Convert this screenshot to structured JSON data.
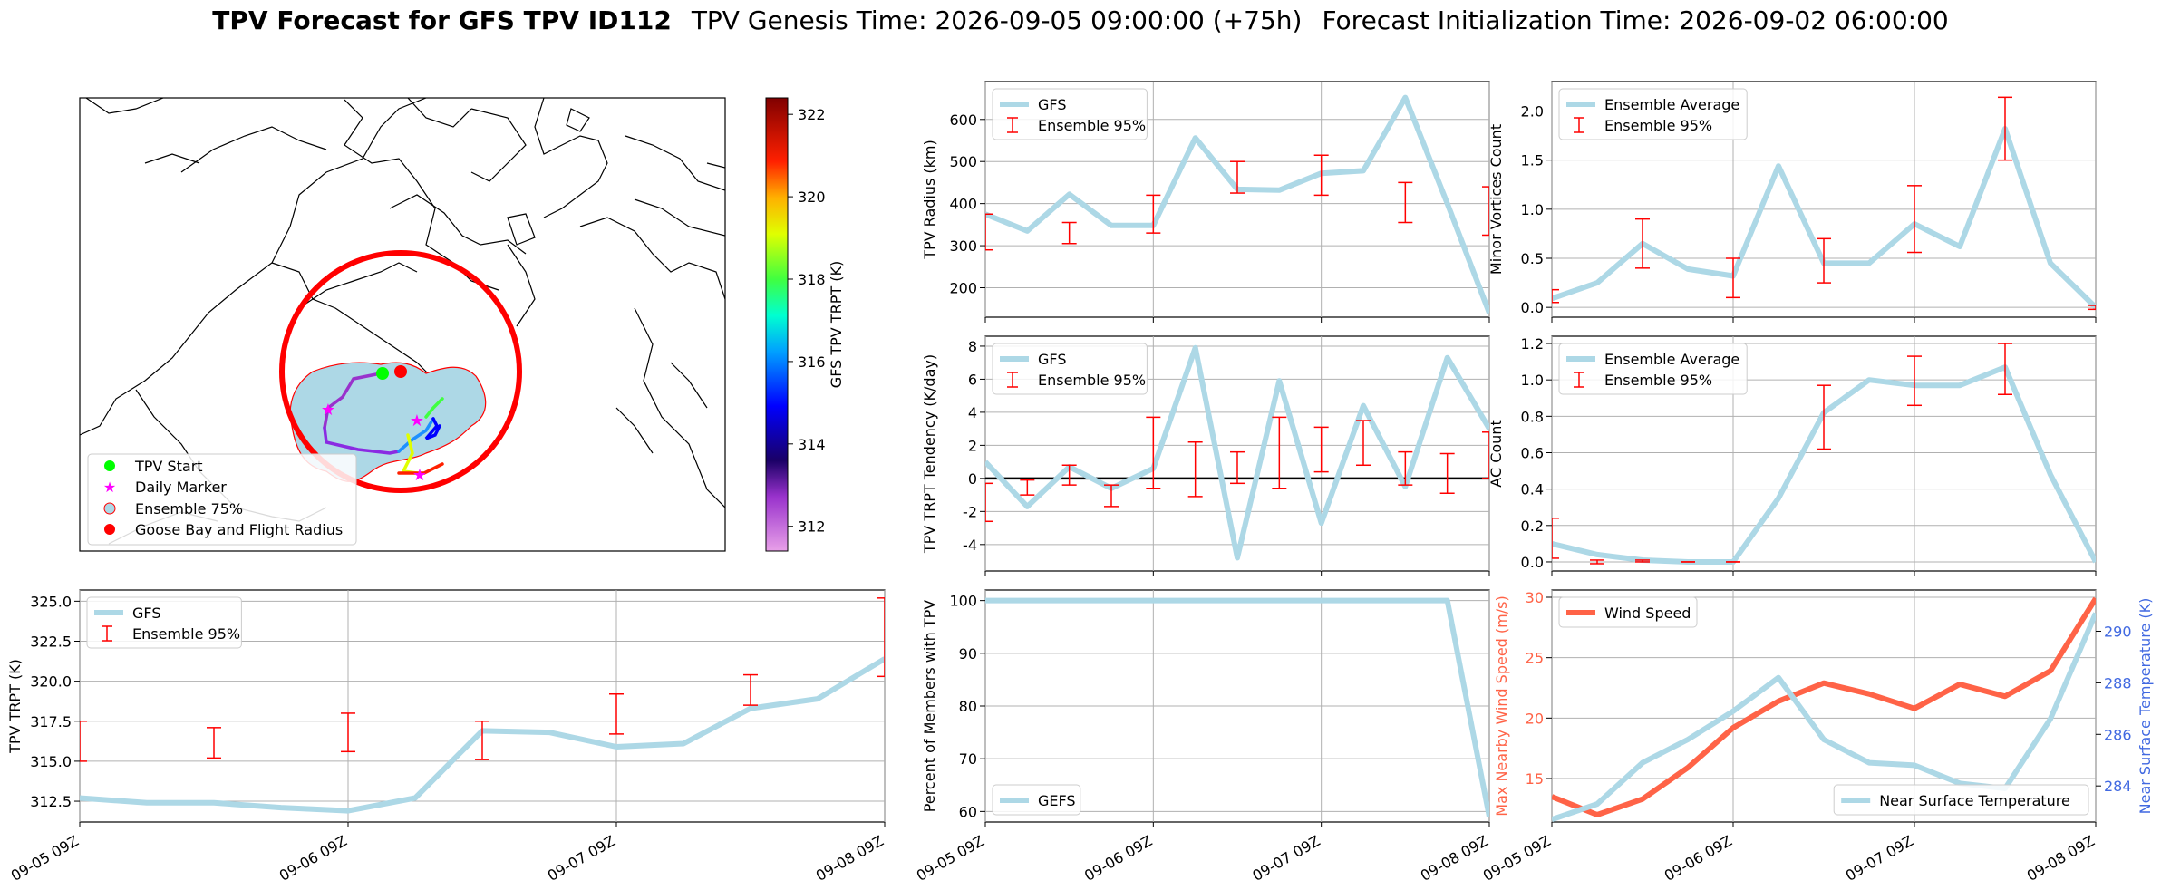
{
  "header": {
    "main_title": "TPV Forecast for GFS TPV ID112",
    "genesis_text": "TPV Genesis Time: 2026-09-05 09:00:00 (+75h)",
    "init_text": "Forecast Initialization Time: 2026-09-02 06:00:00"
  },
  "colors": {
    "line": "#add8e6",
    "error": "#ff0000",
    "wind": "#ff6347",
    "temp_axis": "#4169e1",
    "map_circle": "#ff0000",
    "ensemble_fill": "#add8e6",
    "start_marker": "#00ff00",
    "daily_marker": "#ff00ff",
    "goose_bay": "#ff0000"
  },
  "map": {
    "legend": [
      "TPV Start",
      "Daily Marker",
      "Ensemble 75%",
      "Goose Bay and Flight Radius"
    ],
    "colorbar": {
      "label": "GFS TPV TRPT (K)",
      "ticks": [
        "322",
        "320",
        "318",
        "316",
        "314",
        "312"
      ],
      "range": [
        311.4,
        322.4
      ]
    }
  },
  "chart_data": [
    {
      "id": "radius",
      "type": "line",
      "ylabel": "TPV Radius (km)",
      "ylim": [
        130,
        690
      ],
      "yticks": [
        200,
        300,
        400,
        500,
        600
      ],
      "x_ticklabels": [],
      "legend": [
        "GFS",
        "Ensemble 95%"
      ],
      "legend_pos": "top-left",
      "grid": true,
      "series": [
        {
          "name": "GFS",
          "values": [
            375,
            335,
            422,
            348,
            348,
            556,
            434,
            432,
            472,
            478,
            652,
            400,
            140
          ]
        }
      ],
      "error_bars": [
        [
          290,
          375
        ],
        null,
        [
          305,
          355
        ],
        null,
        [
          330,
          420
        ],
        null,
        [
          425,
          500
        ],
        null,
        [
          420,
          515
        ],
        null,
        [
          355,
          450
        ],
        null,
        [
          325,
          440
        ]
      ]
    },
    {
      "id": "minor_vortices",
      "type": "line",
      "ylabel": "Minor Vortices Count",
      "ylim": [
        -0.1,
        2.3
      ],
      "yticks": [
        "0.0",
        "0.5",
        "1.0",
        "1.5",
        "2.0"
      ],
      "x_ticklabels": [],
      "legend": [
        "Ensemble Average",
        "Ensemble 95%"
      ],
      "legend_pos": "top-left",
      "grid": true,
      "series": [
        {
          "name": "Ensemble Average",
          "values": [
            0.09,
            0.25,
            0.65,
            0.39,
            0.32,
            1.44,
            0.45,
            0.45,
            0.85,
            0.62,
            1.82,
            0.45,
            0.0
          ]
        }
      ],
      "error_bars": [
        [
          0.05,
          0.18
        ],
        null,
        [
          0.4,
          0.9
        ],
        null,
        [
          0.1,
          0.5
        ],
        null,
        [
          0.25,
          0.7
        ],
        null,
        [
          0.56,
          1.24
        ],
        null,
        [
          1.5,
          2.14
        ],
        null,
        [
          -0.02,
          0.02
        ]
      ]
    },
    {
      "id": "trpt_tendency",
      "type": "line",
      "ylabel": "TPV TRPT Tendency (K/day)",
      "ylim": [
        -5.6,
        8.6
      ],
      "yticks": [
        -4,
        -2,
        0,
        2,
        4,
        6,
        8
      ],
      "x_ticklabels": [],
      "zero_line": true,
      "legend": [
        "GFS",
        "Ensemble 95%"
      ],
      "legend_pos": "top-left",
      "grid": true,
      "series": [
        {
          "name": "GFS",
          "values": [
            1.0,
            -1.7,
            0.7,
            -0.6,
            0.6,
            7.9,
            -4.8,
            5.9,
            -2.7,
            4.4,
            -0.5,
            7.3,
            3.0
          ]
        }
      ],
      "error_bars": [
        [
          -2.6,
          -0.3
        ],
        [
          -1.0,
          -0.1
        ],
        [
          -0.4,
          0.8
        ],
        [
          -1.7,
          -0.4
        ],
        [
          -0.6,
          3.7
        ],
        [
          -1.1,
          2.2
        ],
        [
          -0.3,
          1.6
        ],
        [
          -0.6,
          3.7
        ],
        [
          0.4,
          3.1
        ],
        [
          0.8,
          3.5
        ],
        [
          -0.4,
          1.6
        ],
        [
          -0.9,
          1.5
        ],
        [
          0.0,
          2.8
        ]
      ]
    },
    {
      "id": "ac_count",
      "type": "line",
      "ylabel": "AC Count",
      "ylim": [
        -0.05,
        1.24
      ],
      "yticks": [
        "0.0",
        "0.2",
        "0.4",
        "0.6",
        "0.8",
        "1.0",
        "1.2"
      ],
      "x_ticklabels": [],
      "legend": [
        "Ensemble Average",
        "Ensemble 95%"
      ],
      "legend_pos": "top-left",
      "grid": true,
      "series": [
        {
          "name": "Ensemble Average",
          "values": [
            0.1,
            0.04,
            0.01,
            0.0,
            0.0,
            0.35,
            0.82,
            1.0,
            0.97,
            0.97,
            1.07,
            0.48,
            0.0
          ]
        }
      ],
      "error_bars": [
        [
          0.02,
          0.24
        ],
        [
          -0.01,
          0.01
        ],
        [
          0.0,
          0.01
        ],
        [
          0.0,
          0.0
        ],
        [
          0.0,
          0.0
        ],
        null,
        [
          0.62,
          0.97
        ],
        null,
        [
          0.86,
          1.13
        ],
        null,
        [
          0.92,
          1.2
        ],
        null,
        null
      ]
    },
    {
      "id": "trpt",
      "type": "line",
      "ylabel": "TPV TRPT (K)",
      "ylim": [
        311.2,
        325.7
      ],
      "yticks": [
        "312.5",
        "315.0",
        "317.5",
        "320.0",
        "322.5",
        "325.0"
      ],
      "x_ticklabels": [
        "09-05 09Z",
        "09-06 09Z",
        "09-07 09Z",
        "09-08 09Z"
      ],
      "legend": [
        "GFS",
        "Ensemble 95%"
      ],
      "legend_pos": "top-left",
      "grid": true,
      "series": [
        {
          "name": "GFS",
          "values": [
            312.7,
            312.4,
            312.4,
            312.1,
            311.9,
            312.7,
            316.9,
            316.8,
            315.9,
            316.1,
            318.3,
            318.9,
            321.4
          ]
        }
      ],
      "error_bars": [
        [
          315.0,
          317.5
        ],
        null,
        [
          315.2,
          317.1
        ],
        null,
        [
          315.6,
          318.0
        ],
        null,
        [
          315.1,
          317.5
        ],
        null,
        [
          316.7,
          319.2
        ],
        null,
        [
          318.5,
          320.4
        ],
        null,
        [
          320.3,
          325.2
        ]
      ]
    },
    {
      "id": "percent_members",
      "type": "line",
      "ylabel": "Percent of Members with TPV",
      "ylim": [
        58,
        102
      ],
      "yticks": [
        60,
        70,
        80,
        90,
        100
      ],
      "x_ticklabels": [
        "09-05 09Z",
        "09-06 09Z",
        "09-07 09Z",
        "09-08 09Z"
      ],
      "legend": [
        "GEFS"
      ],
      "legend_pos": "bottom-left",
      "grid": true,
      "series": [
        {
          "name": "GEFS",
          "values": [
            100,
            100,
            100,
            100,
            100,
            100,
            100,
            100,
            100,
            100,
            100,
            100,
            59
          ]
        }
      ]
    },
    {
      "id": "wind_temp",
      "type": "line",
      "ylabel": "Max Nearby Wind Speed (m/s)",
      "ylabel2": "Near Surface Temperature (K)",
      "ylim": [
        11.4,
        30.6
      ],
      "ylim2": [
        282.6,
        291.6
      ],
      "yticks": [
        15,
        20,
        25,
        30
      ],
      "yticks2": [
        284,
        286,
        288,
        290
      ],
      "x_ticklabels": [
        "09-05 09Z",
        "09-06 09Z",
        "09-07 09Z",
        "09-08 09Z"
      ],
      "legend": [
        "Wind Speed"
      ],
      "legend2": [
        "Near Surface Temperature"
      ],
      "grid": true,
      "series": [
        {
          "name": "Wind Speed",
          "axis": "left",
          "values": [
            13.5,
            12.0,
            13.3,
            15.9,
            19.2,
            21.4,
            22.9,
            22.0,
            20.8,
            22.8,
            21.8,
            23.9,
            29.9
          ]
        },
        {
          "name": "Near Surface Temperature",
          "axis": "right",
          "values": [
            282.7,
            283.3,
            284.9,
            285.8,
            286.9,
            288.2,
            285.8,
            284.9,
            284.8,
            284.1,
            283.9,
            286.6,
            290.7
          ]
        }
      ]
    }
  ]
}
